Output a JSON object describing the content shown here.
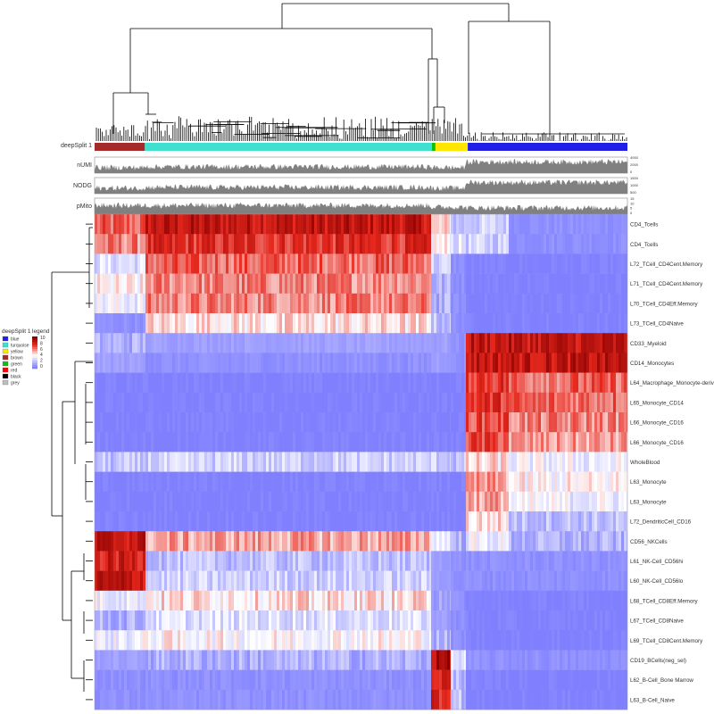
{
  "chart_data": {
    "type": "heatmap",
    "title": "",
    "annotation_rows": [
      {
        "label": "deepSplit 1",
        "kind": "color-bar"
      },
      {
        "label": "nUMI",
        "kind": "bar",
        "ticks": [
          "4000",
          "2000",
          "0"
        ]
      },
      {
        "label": "NODG",
        "kind": "bar",
        "ticks": [
          "1500",
          "1000",
          "500"
        ]
      },
      {
        "label": "pMito",
        "kind": "bar",
        "ticks": [
          "15",
          "10",
          "5",
          "0"
        ]
      }
    ],
    "legend": {
      "groups_title": "deepSplit 1",
      "groups": [
        {
          "name": "blue",
          "color": "#1f1fe6"
        },
        {
          "name": "turquoise",
          "color": "#40e0d0"
        },
        {
          "name": "yellow",
          "color": "#ffe600"
        },
        {
          "name": "brown",
          "color": "#a52a2a"
        },
        {
          "name": "green",
          "color": "#10c010"
        },
        {
          "name": "red",
          "color": "#ff0000"
        },
        {
          "name": "black",
          "color": "#000000"
        },
        {
          "name": "grey",
          "color": "#bebebe"
        }
      ],
      "scale_title": "legend",
      "scale_ticks": [
        "10",
        "8",
        "6",
        "4",
        "2",
        "0"
      ],
      "scale_range": [
        0,
        10
      ],
      "colors": {
        "low": "#8080ff",
        "mid": "#ffffff",
        "high": "#8b0000"
      }
    },
    "column_clusters": [
      {
        "group": "brown",
        "n": 56
      },
      {
        "group": "turquoise",
        "n": 320
      },
      {
        "group": "green",
        "n": 4
      },
      {
        "group": "yellow",
        "n": 36
      },
      {
        "group": "blue",
        "n": 178
      }
    ],
    "rows": [
      {
        "label": "CD4_Tcells",
        "values": [
          6.5,
          8.5,
          4.5,
          2.0,
          2.5,
          0.5
        ]
      },
      {
        "label": "CD4_Tcells",
        "values": [
          6.0,
          7.5,
          4.0,
          3.0,
          2.5,
          0.5
        ]
      },
      {
        "label": "L72_TCell_CD4Cent.Memory",
        "values": [
          3.0,
          6.5,
          2.5,
          0.5,
          0.0,
          0.0
        ]
      },
      {
        "label": "L71_TCell_CD4Cent.Memory",
        "values": [
          4.0,
          6.0,
          1.5,
          0.5,
          0.0,
          0.0
        ]
      },
      {
        "label": "L70_TCell_CD4Eff.Memory",
        "values": [
          3.5,
          6.0,
          1.5,
          0.5,
          0.0,
          0.0
        ]
      },
      {
        "label": "L73_TCell_CD4Naive",
        "values": [
          0.5,
          4.5,
          2.0,
          0.5,
          0.0,
          0.0
        ]
      },
      {
        "label": "CD33_Myeloid",
        "values": [
          1.5,
          1.0,
          1.0,
          0.5,
          8.5,
          8.5
        ]
      },
      {
        "label": "CD14_Monocytes",
        "values": [
          1.0,
          0.5,
          1.0,
          0.5,
          8.5,
          8.5
        ]
      },
      {
        "label": "L64_Macrophage_Monocyte-derived",
        "values": [
          0.0,
          0.0,
          0.0,
          0.0,
          7.5,
          6.5
        ]
      },
      {
        "label": "L65_Monocyte_CD14",
        "values": [
          0.0,
          0.0,
          0.0,
          0.0,
          7.5,
          6.5
        ]
      },
      {
        "label": "L66_Monocyte_CD16",
        "values": [
          0.0,
          0.0,
          0.0,
          0.0,
          7.0,
          6.0
        ]
      },
      {
        "label": "L66_Monocyte_CD16",
        "values": [
          0.0,
          0.0,
          0.0,
          0.0,
          7.0,
          5.5
        ]
      },
      {
        "label": "WholeBlood",
        "values": [
          2.0,
          2.5,
          2.5,
          2.0,
          4.5,
          3.5
        ]
      },
      {
        "label": "L63_Monocyte",
        "values": [
          0.0,
          0.0,
          0.0,
          0.0,
          5.5,
          4.0
        ]
      },
      {
        "label": "L63_Monocyte",
        "values": [
          0.0,
          0.0,
          0.0,
          0.0,
          5.5,
          3.5
        ]
      },
      {
        "label": "L72_DendriticCell_CD16",
        "values": [
          0.0,
          0.0,
          0.0,
          0.0,
          4.5,
          2.0
        ]
      },
      {
        "label": "CD56_NKCells",
        "values": [
          8.5,
          5.5,
          3.5,
          1.5,
          3.5,
          1.5
        ]
      },
      {
        "label": "L61_NK-Cell_CD56hi",
        "values": [
          8.0,
          2.0,
          1.0,
          0.5,
          0.5,
          0.5
        ]
      },
      {
        "label": "L60_NK-Cell_CD56lo",
        "values": [
          8.5,
          2.5,
          1.0,
          0.5,
          0.5,
          0.5
        ]
      },
      {
        "label": "L68_TCell_CD8Eff.Memory",
        "values": [
          3.5,
          4.5,
          1.5,
          0.5,
          0.0,
          0.0
        ]
      },
      {
        "label": "L67_TCell_CD8Naive",
        "values": [
          1.5,
          3.0,
          1.0,
          0.5,
          0.0,
          0.0
        ]
      },
      {
        "label": "L69_TCell_CD8Cent.Memory",
        "values": [
          3.5,
          4.0,
          1.5,
          0.5,
          0.0,
          0.0
        ]
      },
      {
        "label": "CD19_BCells(neg_sel)",
        "values": [
          1.0,
          1.5,
          9.0,
          3.0,
          0.5,
          0.5
        ]
      },
      {
        "label": "L62_B-Cell_Bone Marrow",
        "values": [
          0.5,
          0.5,
          8.0,
          2.0,
          0.0,
          0.0
        ]
      },
      {
        "label": "L63_B-Cell_Naive",
        "values": [
          0.5,
          0.5,
          8.0,
          2.0,
          0.0,
          0.0
        ]
      }
    ],
    "column_segments": [
      "brown",
      "turquoise",
      "yellow",
      "yellow-right",
      "blue-left",
      "blue-right"
    ]
  }
}
